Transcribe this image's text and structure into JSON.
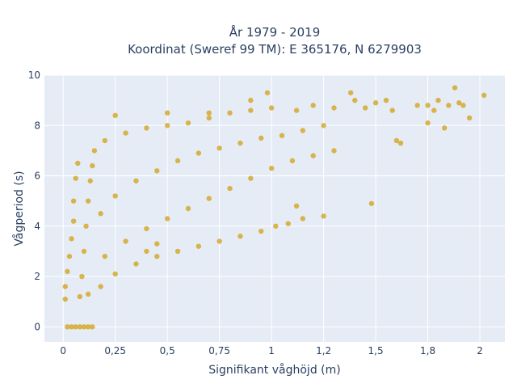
{
  "chart_data": {
    "type": "scatter",
    "title": "År 1979 - 2019",
    "subtitle": "Koordinat (Sweref 99 TM): E 365176, N 6279903",
    "xlabel": "Signifikant våghöjd (m)",
    "ylabel": "Vågperiod (s)",
    "xlim": [
      -0.09,
      2.12
    ],
    "ylim": [
      -0.6,
      10
    ],
    "x_ticks": [
      0,
      0.25,
      0.5,
      0.75,
      1,
      1.25,
      1.5,
      1.75,
      2
    ],
    "x_tick_labels": [
      "0",
      "0,25",
      "0,5",
      "0,75",
      "1",
      "1,2",
      "1,5",
      "1,8",
      "2"
    ],
    "y_ticks": [
      0,
      2,
      4,
      6,
      8,
      10
    ],
    "y_tick_labels": [
      "0",
      "2",
      "4",
      "6",
      "8",
      "10"
    ],
    "grid": true,
    "colors": {
      "marker": "#d4a521",
      "plot_bg": "#e5ecf6",
      "text": "#2a3f5f"
    },
    "series": [
      {
        "marker_opacity": 0.8,
        "points": [
          [
            0.02,
            0
          ],
          [
            0.04,
            0
          ],
          [
            0.06,
            0
          ],
          [
            0.08,
            0
          ],
          [
            0.1,
            0
          ],
          [
            0.12,
            0
          ],
          [
            0.14,
            0
          ],
          [
            0.01,
            1.1
          ],
          [
            0.01,
            1.6
          ],
          [
            0.02,
            2.2
          ],
          [
            0.03,
            2.8
          ],
          [
            0.04,
            3.5
          ],
          [
            0.05,
            4.2
          ],
          [
            0.05,
            5.0
          ],
          [
            0.06,
            5.9
          ],
          [
            0.07,
            6.5
          ],
          [
            0.08,
            1.2
          ],
          [
            0.09,
            2.0
          ],
          [
            0.1,
            3.0
          ],
          [
            0.11,
            4.0
          ],
          [
            0.12,
            5.0
          ],
          [
            0.13,
            5.8
          ],
          [
            0.14,
            6.4
          ],
          [
            0.15,
            7.0
          ],
          [
            0.12,
            1.3
          ],
          [
            0.18,
            1.6
          ],
          [
            0.25,
            2.1
          ],
          [
            0.35,
            2.5
          ],
          [
            0.45,
            2.8
          ],
          [
            0.55,
            3.0
          ],
          [
            0.65,
            3.2
          ],
          [
            0.75,
            3.4
          ],
          [
            0.85,
            3.6
          ],
          [
            0.95,
            3.8
          ],
          [
            1.02,
            4.0
          ],
          [
            1.08,
            4.1
          ],
          [
            0.2,
            2.8
          ],
          [
            0.3,
            3.4
          ],
          [
            0.4,
            3.9
          ],
          [
            0.5,
            4.3
          ],
          [
            0.6,
            4.7
          ],
          [
            0.7,
            5.1
          ],
          [
            0.8,
            5.5
          ],
          [
            0.9,
            5.9
          ],
          [
            1.0,
            6.3
          ],
          [
            1.1,
            6.6
          ],
          [
            1.2,
            6.8
          ],
          [
            1.3,
            7.0
          ],
          [
            0.18,
            4.5
          ],
          [
            0.25,
            5.2
          ],
          [
            0.35,
            5.8
          ],
          [
            0.45,
            6.2
          ],
          [
            0.55,
            6.6
          ],
          [
            0.65,
            6.9
          ],
          [
            0.75,
            7.1
          ],
          [
            0.85,
            7.3
          ],
          [
            0.95,
            7.5
          ],
          [
            1.05,
            7.6
          ],
          [
            1.15,
            7.8
          ],
          [
            1.25,
            8.0
          ],
          [
            0.2,
            7.4
          ],
          [
            0.3,
            7.7
          ],
          [
            0.4,
            7.9
          ],
          [
            0.5,
            8.0
          ],
          [
            0.6,
            8.1
          ],
          [
            0.7,
            8.3
          ],
          [
            0.8,
            8.5
          ],
          [
            0.9,
            8.6
          ],
          [
            1.0,
            8.7
          ],
          [
            0.25,
            8.4
          ],
          [
            0.5,
            8.5
          ],
          [
            0.7,
            8.5
          ],
          [
            0.9,
            9.0
          ],
          [
            0.98,
            9.3
          ],
          [
            1.12,
            8.6
          ],
          [
            1.2,
            8.8
          ],
          [
            1.3,
            8.7
          ],
          [
            1.4,
            9.0
          ],
          [
            1.38,
            9.3
          ],
          [
            1.45,
            8.7
          ],
          [
            1.5,
            8.9
          ],
          [
            1.55,
            9.0
          ],
          [
            1.58,
            8.6
          ],
          [
            1.25,
            4.4
          ],
          [
            1.15,
            4.3
          ],
          [
            1.48,
            4.9
          ],
          [
            1.12,
            4.8
          ],
          [
            0.4,
            3.0
          ],
          [
            0.45,
            3.3
          ],
          [
            1.7,
            8.8
          ],
          [
            1.75,
            8.8
          ],
          [
            1.8,
            9.0
          ],
          [
            1.78,
            8.6
          ],
          [
            1.85,
            8.8
          ],
          [
            1.88,
            9.5
          ],
          [
            1.9,
            8.9
          ],
          [
            1.92,
            8.8
          ],
          [
            1.83,
            7.9
          ],
          [
            1.95,
            8.3
          ],
          [
            1.75,
            8.1
          ],
          [
            2.02,
            9.2
          ],
          [
            1.6,
            7.4
          ],
          [
            1.62,
            7.3
          ]
        ]
      }
    ]
  }
}
